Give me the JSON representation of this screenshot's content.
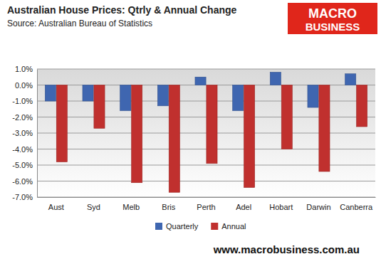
{
  "chart_data": {
    "type": "bar",
    "title": "Australian House Prices: Qtrly & Annual Change",
    "subtitle": "Source: Australian Bureau of Statistics",
    "categories": [
      "Aust",
      "Syd",
      "Melb",
      "Bris",
      "Perth",
      "Adel",
      "Hobart",
      "Darwin",
      "Canberra"
    ],
    "series": [
      {
        "name": "Quarterly",
        "color": "#3f66b0",
        "values": [
          -1.0,
          -1.0,
          -1.6,
          -1.3,
          0.5,
          -1.6,
          0.8,
          -1.4,
          0.7
        ]
      },
      {
        "name": "Annual",
        "color": "#c0302e",
        "values": [
          -4.8,
          -2.7,
          -6.1,
          -6.7,
          -4.9,
          -6.4,
          -4.0,
          -5.4,
          -2.6
        ]
      }
    ],
    "ylim": [
      -7,
      1
    ],
    "yticks": [
      {
        "value": -7,
        "label": "-7.0%"
      },
      {
        "value": -6,
        "label": "-6.0%"
      },
      {
        "value": -5,
        "label": "-5.0%"
      },
      {
        "value": -4,
        "label": "-4.0%"
      },
      {
        "value": -3,
        "label": "-3.0%"
      },
      {
        "value": -2,
        "label": "-2.0%"
      },
      {
        "value": -1,
        "label": "-1.0%"
      },
      {
        "value": 0,
        "label": "0.0%"
      },
      {
        "value": 1,
        "label": "1.0%"
      }
    ],
    "grid": true,
    "legend": "bottom",
    "annotations": [
      "MACRO",
      "BUSINESS",
      "www.macrobusiness.com.au"
    ]
  }
}
